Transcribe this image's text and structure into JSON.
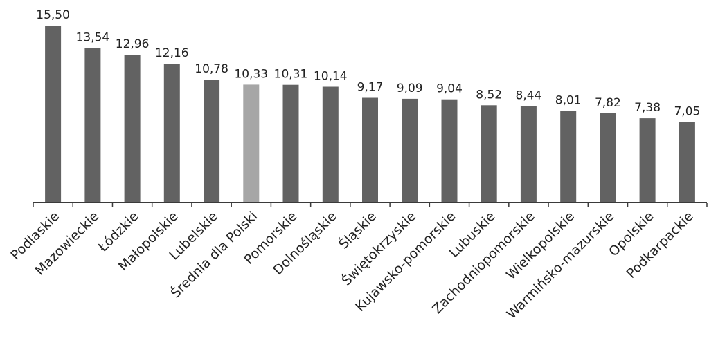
{
  "chart_data": {
    "type": "bar",
    "title": "",
    "xlabel": "",
    "ylabel": "",
    "ylim": [
      0,
      15.5
    ],
    "categories": [
      "Podlaskie",
      "Mazowieckie",
      "Łódzkie",
      "Małopolskie",
      "Lubelskie",
      "Średnia dla Polski",
      "Pomorskie",
      "Dolnośląskie",
      "Śląskie",
      "Świętokrzyskie",
      "Kujawsko-pomorskie",
      "Lubuskie",
      "Zachodniopomorskie",
      "Wielkopolskie",
      "Warmińsko-mazurskie",
      "Opolskie",
      "Podkarpackie"
    ],
    "values": [
      15.5,
      13.54,
      12.96,
      12.16,
      10.78,
      10.33,
      10.31,
      10.14,
      9.17,
      9.09,
      9.04,
      8.52,
      8.44,
      8.01,
      7.82,
      7.38,
      7.05
    ],
    "value_labels": [
      "15,50",
      "13,54",
      "12,96",
      "12,16",
      "10,78",
      "10,33",
      "10,31",
      "10,14",
      "9,17",
      "9,09",
      "9,04",
      "8,52",
      "8,44",
      "8,01",
      "7,82",
      "7,38",
      "7,05"
    ],
    "highlight_category": "Średnia dla Polski",
    "colors": {
      "bar": "#626262",
      "highlight": "#a6a6a6",
      "axis": "#3a3a3a"
    },
    "grid": false,
    "legend": "none"
  }
}
